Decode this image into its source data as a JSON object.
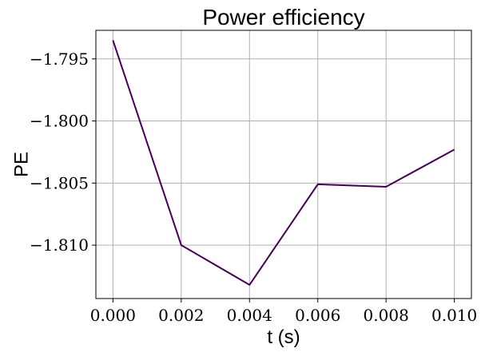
{
  "chart_data": {
    "type": "line",
    "title": "Power efficiency",
    "xlabel": "t (s)",
    "ylabel": "PE",
    "xlim": [
      -0.0005,
      0.0105
    ],
    "ylim": [
      -1.8143,
      -1.7927
    ],
    "xticks": [
      0.0,
      0.002,
      0.004,
      0.006,
      0.008,
      0.01
    ],
    "xtick_labels": [
      "0.000",
      "0.002",
      "0.004",
      "0.006",
      "0.008",
      "0.010"
    ],
    "yticks": [
      -1.81,
      -1.805,
      -1.8,
      -1.795
    ],
    "ytick_labels": [
      "−1.810",
      "−1.805",
      "−1.800",
      "−1.795"
    ],
    "grid": true,
    "series": [
      {
        "color": "#440154",
        "x": [
          0.0,
          0.002,
          0.004,
          0.006,
          0.008,
          0.01
        ],
        "y": [
          -1.7935,
          -1.81,
          -1.8132,
          -1.8051,
          -1.8053,
          -1.8023
        ]
      }
    ]
  }
}
